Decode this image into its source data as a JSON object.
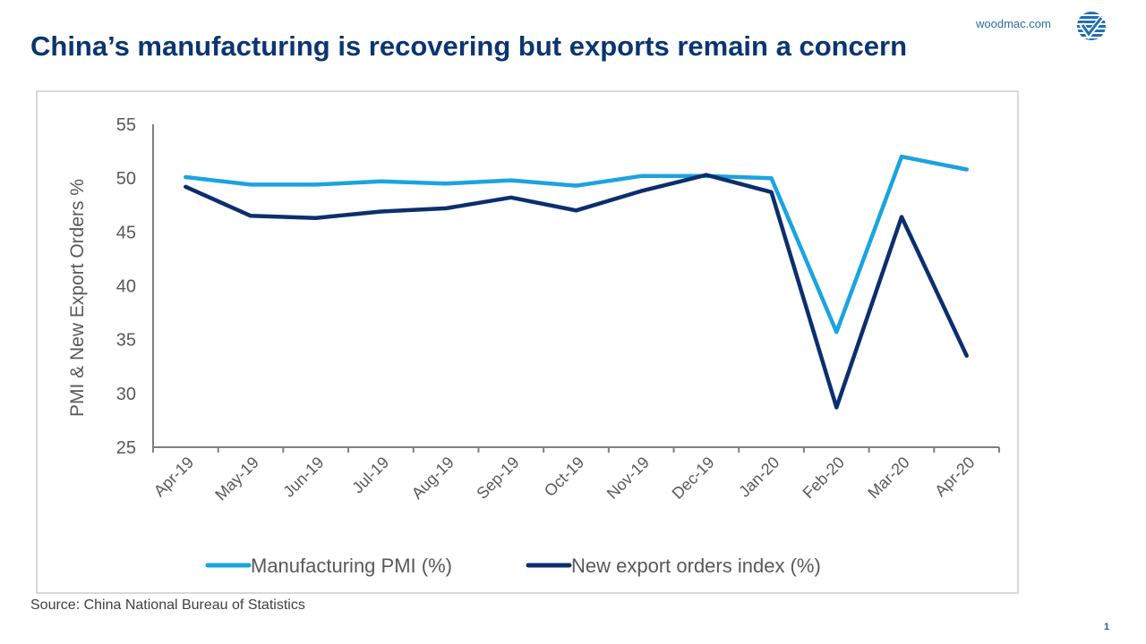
{
  "header": {
    "title": "China’s manufacturing is recovering but exports remain a concern",
    "site": "woodmac.com",
    "logo_icon": "woodmac-logo-icon"
  },
  "footer": {
    "source": "Source: China National Bureau of Statistics",
    "page_number": "1"
  },
  "colors": {
    "title": "#0b3572",
    "pmi": "#1ba3e0",
    "export": "#0b2f6e",
    "axis": "#7f7f7f",
    "tick_text": "#595959"
  },
  "chart_data": {
    "type": "line",
    "title": "",
    "xlabel": "",
    "ylabel": "PMI & New Export Orders %",
    "ylim": [
      25,
      55
    ],
    "yticks": [
      25,
      30,
      35,
      40,
      45,
      50,
      55
    ],
    "ytick_labels": [
      "25",
      "30",
      "35",
      "40",
      "45",
      "50",
      "55"
    ],
    "grid": false,
    "legend_position": "bottom",
    "categories": [
      "Apr-19",
      "May-19",
      "Jun-19",
      "Jul-19",
      "Aug-19",
      "Sep-19",
      "Oct-19",
      "Nov-19",
      "Dec-19",
      "Jan-20",
      "Feb-20",
      "Mar-20",
      "Apr-20"
    ],
    "series": [
      {
        "name": "Manufacturing PMI (%)",
        "color": "#1ba3e0",
        "values": [
          50.1,
          49.4,
          49.4,
          49.7,
          49.5,
          49.8,
          49.3,
          50.2,
          50.2,
          50.0,
          35.7,
          52.0,
          50.8
        ]
      },
      {
        "name": "New export orders index (%)",
        "color": "#0b2f6e",
        "values": [
          49.2,
          46.5,
          46.3,
          46.9,
          47.2,
          48.2,
          47.0,
          48.8,
          50.3,
          48.7,
          28.7,
          46.4,
          33.5
        ]
      }
    ]
  }
}
